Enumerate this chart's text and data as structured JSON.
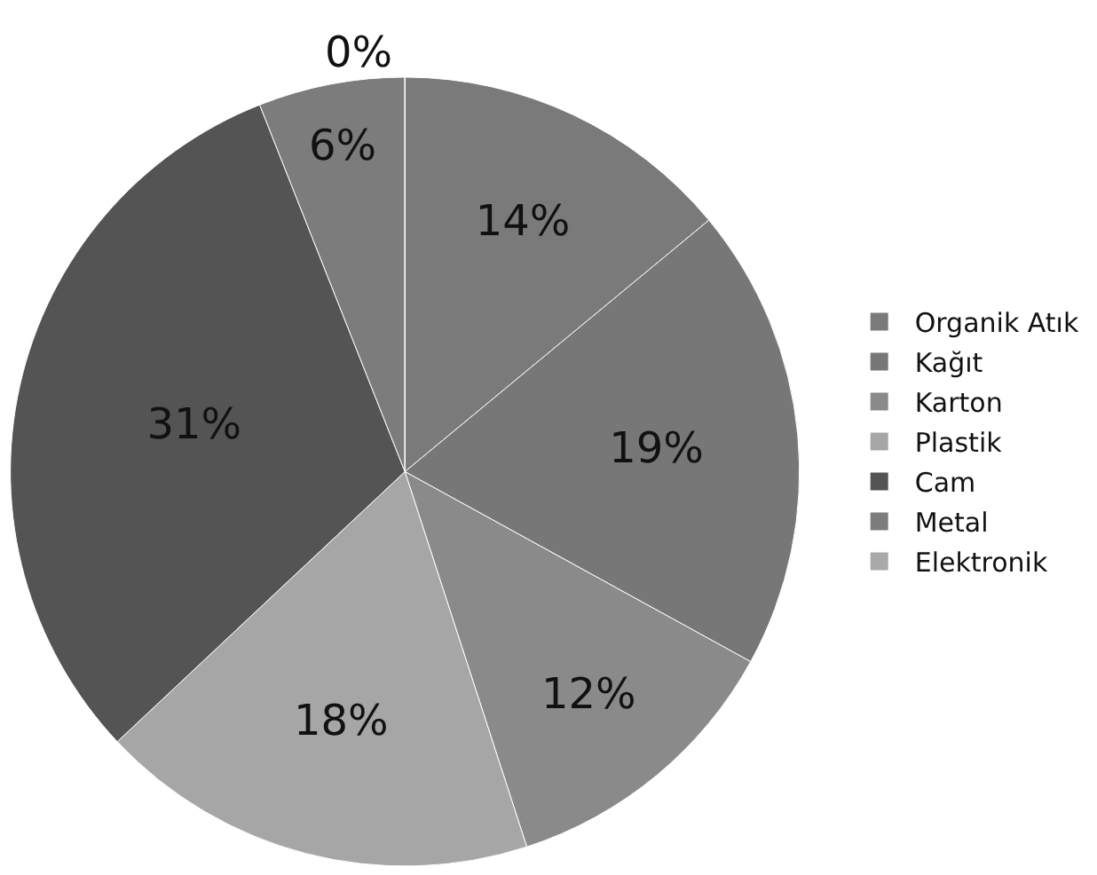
{
  "chart_data": {
    "type": "pie",
    "categories": [
      "Organik Atık",
      "Kağıt",
      "Karton",
      "Plastik",
      "Cam",
      "Metal",
      "Elektronik"
    ],
    "values": [
      14,
      19,
      12,
      18,
      31,
      6,
      0
    ],
    "colors": [
      "#7a7a7a",
      "#777777",
      "#8a8a8a",
      "#a6a6a6",
      "#545454",
      "#7c7c7c",
      "#a9a9a9"
    ],
    "value_labels": [
      "14%",
      "19%",
      "12%",
      "18%",
      "31%",
      "6%",
      "0%"
    ],
    "legend": "right"
  }
}
